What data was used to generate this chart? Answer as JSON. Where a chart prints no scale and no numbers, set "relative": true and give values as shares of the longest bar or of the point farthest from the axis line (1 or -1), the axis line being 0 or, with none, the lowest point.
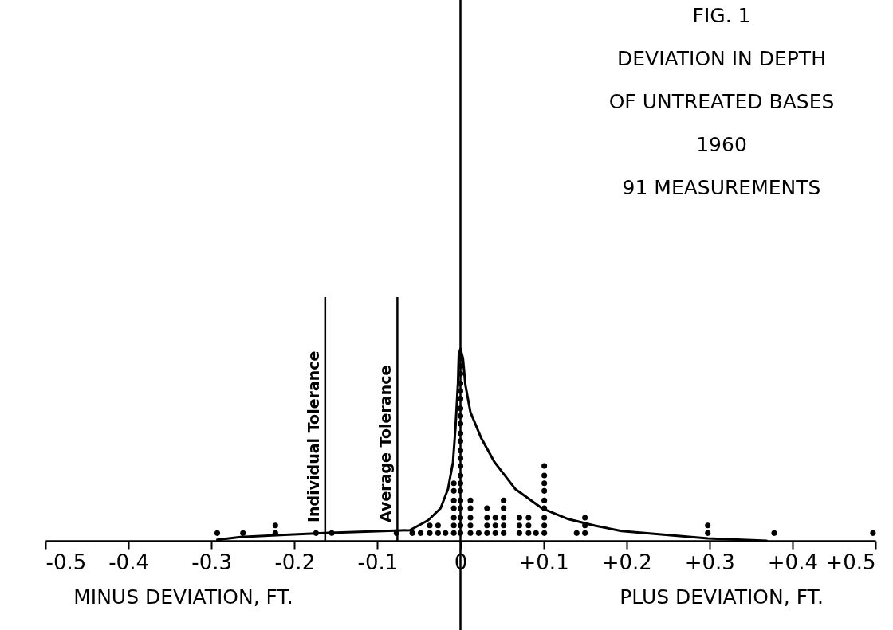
{
  "chart_data": {
    "type": "line",
    "title": "FIG. 1",
    "subtitle": "DEVIATION IN DEPTH\nOF UNTREATED BASES\n1960\n91 MEASUREMENTS",
    "annotations": [
      "MINUS DEVIATION, FT.",
      "PLUS DEVIATION, FT."
    ],
    "relative": true,
    "xlim": [
      -0.5,
      0.5
    ],
    "xticks": [
      -0.5,
      -0.4,
      -0.3,
      -0.2,
      -0.1,
      0,
      {
        "value": 0.1,
        "label": "+0.1"
      },
      {
        "value": 0.2,
        "label": "+0.2"
      },
      {
        "value": 0.3,
        "label": "+0.3"
      },
      {
        "value": 0.4,
        "label": "+0.4"
      },
      {
        "value": 0.5,
        "label": "+0.5"
      }
    ],
    "series": [
      {
        "color": "#000000",
        "x": [
          -0.293,
          -0.265,
          -0.217,
          -0.164,
          -0.093,
          -0.061,
          -0.039,
          -0.024,
          -0.015,
          -0.009,
          -0.006,
          -0.003,
          -0.002,
          0,
          0.003,
          0.006,
          0.012,
          0.025,
          0.041,
          0.066,
          0.098,
          0.13,
          0.162,
          0.194,
          0.298,
          0.369
        ],
        "values": [
          0.005,
          0.02,
          0.03,
          0.04,
          0.051,
          0.055,
          0.107,
          0.169,
          0.27,
          0.41,
          0.59,
          0.82,
          0.97,
          1,
          0.95,
          0.81,
          0.67,
          0.535,
          0.41,
          0.27,
          0.17,
          0.113,
          0.079,
          0.051,
          0.012,
          0
        ]
      },
      {
        "type": "scatter",
        "color": "#000000",
        "x": [
          -0.293,
          -0.262,
          -0.223,
          -0.223,
          -0.174,
          -0.155,
          -0.077,
          -0.058,
          -0.048,
          -0.037,
          -0.037,
          -0.027,
          -0.027,
          -0.018,
          -0.008,
          -0.008,
          -0.008,
          -0.008,
          -0.008,
          -0.008,
          -0.008,
          0,
          0,
          0,
          0,
          0,
          0,
          0,
          0,
          0,
          0,
          0,
          0,
          0,
          0,
          0,
          0,
          0,
          0,
          0,
          0,
          0,
          0,
          0.012,
          0.012,
          0.012,
          0.012,
          0.012,
          0.022,
          0.032,
          0.032,
          0.032,
          0.032,
          0.042,
          0.042,
          0.042,
          0.052,
          0.052,
          0.052,
          0.052,
          0.052,
          0.071,
          0.071,
          0.071,
          0.082,
          0.082,
          0.082,
          0.091,
          0.101,
          0.101,
          0.101,
          0.101,
          0.101,
          0.101,
          0.101,
          0.101,
          0.101,
          0.14,
          0.15,
          0.15,
          0.15,
          0.298,
          0.298,
          0.378,
          0.497
        ],
        "values": [
          0.04,
          0.04,
          0.04,
          0.08,
          0.04,
          0.04,
          0.04,
          0.04,
          0.04,
          0.04,
          0.08,
          0.04,
          0.08,
          0.04,
          0.04,
          0.08,
          0.12,
          0.17,
          0.21,
          0.26,
          0.3,
          0.04,
          0.08,
          0.12,
          0.17,
          0.21,
          0.26,
          0.3,
          0.34,
          0.39,
          0.43,
          0.47,
          0.52,
          0.56,
          0.61,
          0.65,
          0.69,
          0.74,
          0.78,
          0.82,
          0.87,
          0.91,
          0.95,
          0.04,
          0.08,
          0.12,
          0.17,
          0.21,
          0.04,
          0.04,
          0.08,
          0.12,
          0.17,
          0.04,
          0.08,
          0.12,
          0.04,
          0.08,
          0.12,
          0.17,
          0.21,
          0.04,
          0.08,
          0.12,
          0.04,
          0.08,
          0.12,
          0.04,
          0.04,
          0.08,
          0.12,
          0.17,
          0.21,
          0.26,
          0.3,
          0.34,
          0.39,
          0.04,
          0.04,
          0.08,
          0.12,
          0.04,
          0.08,
          0.04,
          0.04
        ]
      }
    ],
    "ref_lines": [
      {
        "axis": "x",
        "value": 0
      },
      {
        "axis": "x",
        "value": -0.163,
        "label": "Individual Tolerance"
      },
      {
        "axis": "x",
        "value": -0.076,
        "label": "Average Tolerance"
      }
    ]
  }
}
